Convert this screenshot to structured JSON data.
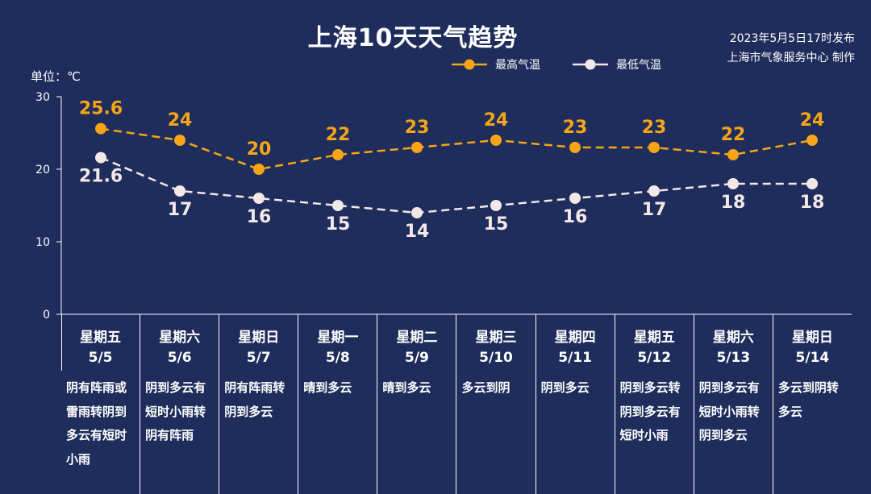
{
  "header": {
    "title": "上海10天天气趋势",
    "publish_time": "2023年5月5日17时发布",
    "publisher": "上海市气象服务中心 制作"
  },
  "unit_label": "单位：℃",
  "legend": {
    "high_label": "最高气温",
    "low_label": "最低气温"
  },
  "colors": {
    "background": "#1f2d5c",
    "high": "#f5a516",
    "low": "#f2e8e8",
    "axis": "#ffffff"
  },
  "chart_data": {
    "type": "line",
    "y_unit": "℃",
    "ylim": [
      0,
      30
    ],
    "yticks": [
      0,
      10,
      20,
      30
    ],
    "x": [
      "5/5",
      "5/6",
      "5/7",
      "5/8",
      "5/9",
      "5/10",
      "5/11",
      "5/12",
      "5/13",
      "5/14"
    ],
    "series": [
      {
        "name": "最高气温",
        "line_style": "dashed",
        "color": "#f5a516",
        "values": [
          25.6,
          24,
          20,
          22,
          23,
          24,
          23,
          23,
          22,
          24
        ]
      },
      {
        "name": "最低气温",
        "line_style": "dashed",
        "color": "#f2e8e8",
        "values": [
          21.6,
          17,
          16,
          15,
          14,
          15,
          16,
          17,
          18,
          18
        ]
      }
    ],
    "grid": false,
    "legend_position": "top-right"
  },
  "days": [
    {
      "weekday": "星期五",
      "date": "5/5",
      "weather": "阴有阵雨或雷雨转阴到多云有短时小雨"
    },
    {
      "weekday": "星期六",
      "date": "5/6",
      "weather": "阴到多云有短时小雨转阴有阵雨"
    },
    {
      "weekday": "星期日",
      "date": "5/7",
      "weather": "阴有阵雨转阴到多云"
    },
    {
      "weekday": "星期一",
      "date": "5/8",
      "weather": "晴到多云"
    },
    {
      "weekday": "星期二",
      "date": "5/9",
      "weather": "晴到多云"
    },
    {
      "weekday": "星期三",
      "date": "5/10",
      "weather": "多云到阴"
    },
    {
      "weekday": "星期四",
      "date": "5/11",
      "weather": "阴到多云"
    },
    {
      "weekday": "星期五",
      "date": "5/12",
      "weather": "阴到多云转阴到多云有短时小雨"
    },
    {
      "weekday": "星期六",
      "date": "5/13",
      "weather": "阴到多云有短时小雨转阴到多云"
    },
    {
      "weekday": "星期日",
      "date": "5/14",
      "weather": "多云到阴转多云"
    }
  ]
}
